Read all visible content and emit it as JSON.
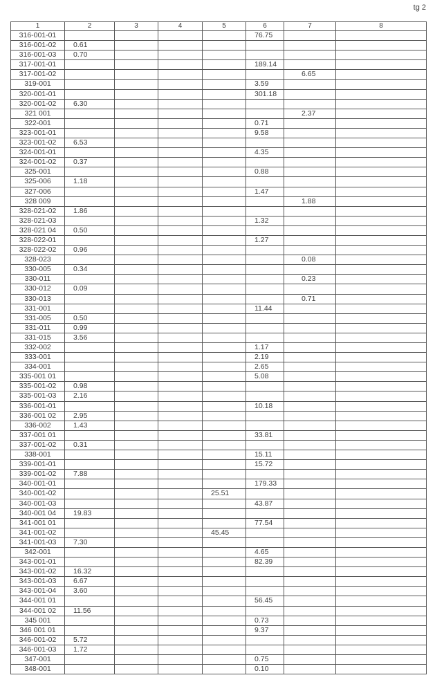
{
  "page_number": "tg 2",
  "columns": [
    "1",
    "2",
    "3",
    "4",
    "5",
    "6",
    "7",
    "8"
  ],
  "rows": [
    [
      "316-001-01",
      "",
      "",
      "",
      "",
      "76.75",
      "",
      ""
    ],
    [
      "316-001-02",
      "0.61",
      "",
      "",
      "",
      "",
      "",
      ""
    ],
    [
      "316-001-03",
      "0.70",
      "",
      "",
      "",
      "",
      "",
      ""
    ],
    [
      "317-001-01",
      "",
      "",
      "",
      "",
      "189.14",
      "",
      ""
    ],
    [
      "317-001-02",
      "",
      "",
      "",
      "",
      "",
      "6.65",
      ""
    ],
    [
      "319-001",
      "",
      "",
      "",
      "",
      "3.59",
      "",
      ""
    ],
    [
      "320-001-01",
      "",
      "",
      "",
      "",
      "301.18",
      "",
      ""
    ],
    [
      "320-001-02",
      "6.30",
      "",
      "",
      "",
      "",
      "",
      ""
    ],
    [
      "321 001",
      "",
      "",
      "",
      "",
      "",
      "2.37",
      ""
    ],
    [
      "322-001",
      "",
      "",
      "",
      "",
      "0.71",
      "",
      ""
    ],
    [
      "323-001-01",
      "",
      "",
      "",
      "",
      "9.58",
      "",
      ""
    ],
    [
      "323-001-02",
      "6.53",
      "",
      "",
      "",
      "",
      "",
      ""
    ],
    [
      "324-001-01",
      "",
      "",
      "",
      "",
      "4.35",
      "",
      ""
    ],
    [
      "324-001-02",
      "0.37",
      "",
      "",
      "",
      "",
      "",
      ""
    ],
    [
      "325-001",
      "",
      "",
      "",
      "",
      "0.88",
      "",
      ""
    ],
    [
      "325-006",
      "1.18",
      "",
      "",
      "",
      "",
      "",
      ""
    ],
    [
      "327-006",
      "",
      "",
      "",
      "",
      "1.47",
      "",
      ""
    ],
    [
      "328 009",
      "",
      "",
      "",
      "",
      "",
      "1.88",
      ""
    ],
    [
      "328-021-02",
      "1.86",
      "",
      "",
      "",
      "",
      "",
      ""
    ],
    [
      "328-021-03",
      "",
      "",
      "",
      "",
      "1.32",
      "",
      ""
    ],
    [
      "328-021 04",
      "0.50",
      "",
      "",
      "",
      "",
      "",
      ""
    ],
    [
      "328-022-01",
      "",
      "",
      "",
      "",
      "1.27",
      "",
      ""
    ],
    [
      "328-022-02",
      "0.96",
      "",
      "",
      "",
      "",
      "",
      ""
    ],
    [
      "328-023",
      "",
      "",
      "",
      "",
      "",
      "0.08",
      ""
    ],
    [
      "330-005",
      "0.34",
      "",
      "",
      "",
      "",
      "",
      ""
    ],
    [
      "330-011",
      "",
      "",
      "",
      "",
      "",
      "0.23",
      ""
    ],
    [
      "330-012",
      "0.09",
      "",
      "",
      "",
      "",
      "",
      ""
    ],
    [
      "330-013",
      "",
      "",
      "",
      "",
      "",
      "0.71",
      ""
    ],
    [
      "331-001",
      "",
      "",
      "",
      "",
      "11.44",
      "",
      ""
    ],
    [
      "331-005",
      "0.50",
      "",
      "",
      "",
      "",
      "",
      ""
    ],
    [
      "331-011",
      "0.99",
      "",
      "",
      "",
      "",
      "",
      ""
    ],
    [
      "331-015",
      "3.56",
      "",
      "",
      "",
      "",
      "",
      ""
    ],
    [
      "332-002",
      "",
      "",
      "",
      "",
      "1.17",
      "",
      ""
    ],
    [
      "333-001",
      "",
      "",
      "",
      "",
      "2.19",
      "",
      ""
    ],
    [
      "334-001",
      "",
      "",
      "",
      "",
      "2.65",
      "",
      ""
    ],
    [
      "335-001 01",
      "",
      "",
      "",
      "",
      "5.08",
      "",
      ""
    ],
    [
      "335-001-02",
      "0.98",
      "",
      "",
      "",
      "",
      "",
      ""
    ],
    [
      "335-001-03",
      "2.16",
      "",
      "",
      "",
      "",
      "",
      ""
    ],
    [
      "336-001-01",
      "",
      "",
      "",
      "",
      "10.18",
      "",
      ""
    ],
    [
      "336-001 02",
      "2.95",
      "",
      "",
      "",
      "",
      "",
      ""
    ],
    [
      "336-002",
      "1.43",
      "",
      "",
      "",
      "",
      "",
      ""
    ],
    [
      "337-001 01",
      "",
      "",
      "",
      "",
      "33.81",
      "",
      ""
    ],
    [
      "337-001-02",
      "0.31",
      "",
      "",
      "",
      "",
      "",
      ""
    ],
    [
      "338-001",
      "",
      "",
      "",
      "",
      "15.11",
      "",
      ""
    ],
    [
      "339-001-01",
      "",
      "",
      "",
      "",
      "15.72",
      "",
      ""
    ],
    [
      "339-001-02",
      "7.88",
      "",
      "",
      "",
      "",
      "",
      ""
    ],
    [
      "340-001-01",
      "",
      "",
      "",
      "",
      "179.33",
      "",
      ""
    ],
    [
      "340-001-02",
      "",
      "",
      "",
      "25.51",
      "",
      "",
      ""
    ],
    [
      "340-001-03",
      "",
      "",
      "",
      "",
      "43.87",
      "",
      ""
    ],
    [
      "340-001 04",
      "19.83",
      "",
      "",
      "",
      "",
      "",
      ""
    ],
    [
      "341-001 01",
      "",
      "",
      "",
      "",
      "77.54",
      "",
      ""
    ],
    [
      "341-001-02",
      "",
      "",
      "",
      "45.45",
      "",
      "",
      ""
    ],
    [
      "341-001-03",
      "7.30",
      "",
      "",
      "",
      "",
      "",
      ""
    ],
    [
      "342-001",
      "",
      "",
      "",
      "",
      "4.65",
      "",
      ""
    ],
    [
      "343-001-01",
      "",
      "",
      "",
      "",
      "82.39",
      "",
      ""
    ],
    [
      "343-001-02",
      "16.32",
      "",
      "",
      "",
      "",
      "",
      ""
    ],
    [
      "343-001-03",
      "6.67",
      "",
      "",
      "",
      "",
      "",
      ""
    ],
    [
      "343-001-04",
      "3.60",
      "",
      "",
      "",
      "",
      "",
      ""
    ],
    [
      "344-001 01",
      "",
      "",
      "",
      "",
      "56.45",
      "",
      ""
    ],
    [
      "344-001 02",
      "11.56",
      "",
      "",
      "",
      "",
      "",
      ""
    ],
    [
      "345 001",
      "",
      "",
      "",
      "",
      "0.73",
      "",
      ""
    ],
    [
      "346 001 01",
      "",
      "",
      "",
      "",
      "9.37",
      "",
      ""
    ],
    [
      "346-001-02",
      "5.72",
      "",
      "",
      "",
      "",
      "",
      ""
    ],
    [
      "346-001-03",
      "1.72",
      "",
      "",
      "",
      "",
      "",
      ""
    ],
    [
      "347-001",
      "",
      "",
      "",
      "",
      "0.75",
      "",
      ""
    ],
    [
      "348-001",
      "",
      "",
      "",
      "",
      "0.10",
      "",
      ""
    ]
  ]
}
